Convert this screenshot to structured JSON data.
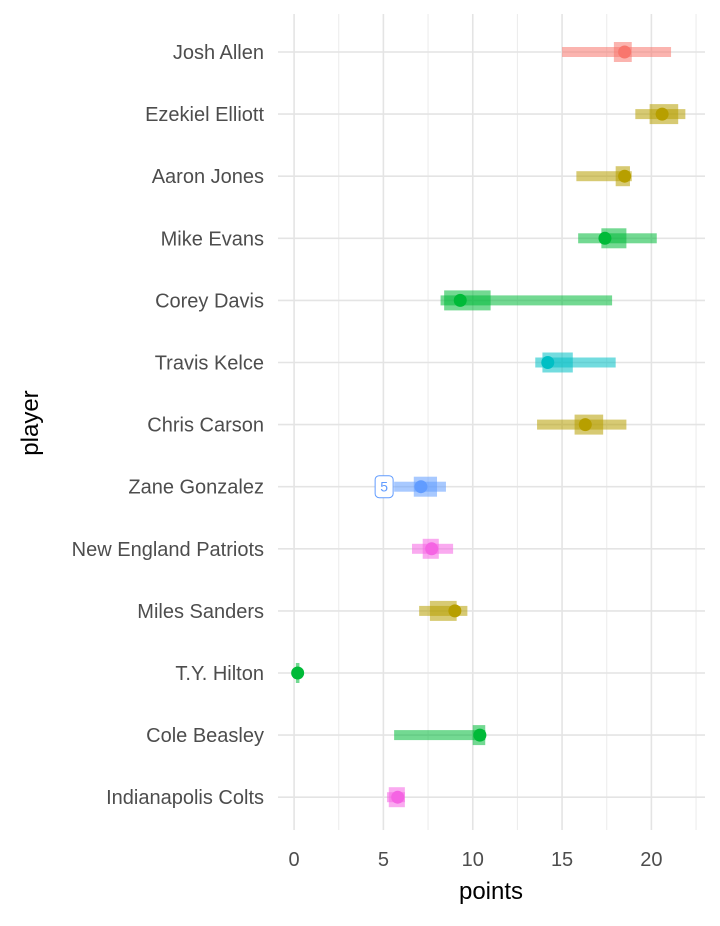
{
  "chart_data": {
    "type": "range-dot",
    "xlabel": "points",
    "ylabel": "player",
    "xlim": [
      -0.9,
      23.0
    ],
    "x_ticks": [
      0,
      5,
      10,
      15,
      20
    ],
    "grid": true,
    "legend": "none",
    "players": [
      {
        "name": "Josh Allen",
        "color": "#F8766D",
        "low": 15.0,
        "q1": 17.9,
        "q3": 18.9,
        "high": 21.1,
        "point": 18.5
      },
      {
        "name": "Ezekiel Elliott",
        "color": "#B79F00",
        "low": 19.1,
        "q1": 19.9,
        "q3": 21.5,
        "high": 21.9,
        "point": 20.6
      },
      {
        "name": "Aaron Jones",
        "color": "#B79F00",
        "low": 15.8,
        "q1": 18.0,
        "q3": 18.8,
        "high": 18.9,
        "point": 18.5
      },
      {
        "name": "Mike Evans",
        "color": "#00BA38",
        "low": 15.9,
        "q1": 17.2,
        "q3": 18.6,
        "high": 20.3,
        "point": 17.4
      },
      {
        "name": "Corey Davis",
        "color": "#00BA38",
        "low": 8.2,
        "q1": 8.4,
        "q3": 11.0,
        "high": 17.8,
        "point": 9.3
      },
      {
        "name": "Travis Kelce",
        "color": "#00BFC4",
        "low": 13.5,
        "q1": 13.9,
        "q3": 15.6,
        "high": 18.0,
        "point": 14.2
      },
      {
        "name": "Chris Carson",
        "color": "#B79F00",
        "low": 13.6,
        "q1": 15.7,
        "q3": 17.3,
        "high": 18.6,
        "point": 16.3
      },
      {
        "name": "Zane Gonzalez",
        "color": "#619CFF",
        "low": 5.6,
        "q1": 6.7,
        "q3": 8.0,
        "high": 8.5,
        "point": 7.1,
        "label": "5"
      },
      {
        "name": "New England Patriots",
        "color": "#F564E3",
        "low": 6.6,
        "q1": 7.2,
        "q3": 8.1,
        "high": 8.9,
        "point": 7.7
      },
      {
        "name": "Miles Sanders",
        "color": "#B79F00",
        "low": 7.0,
        "q1": 7.6,
        "q3": 9.1,
        "high": 9.7,
        "point": 9.0
      },
      {
        "name": "T.Y. Hilton",
        "color": "#00BA38",
        "low": 0.1,
        "q1": 0.1,
        "q3": 0.3,
        "high": 0.3,
        "point": 0.2
      },
      {
        "name": "Cole Beasley",
        "color": "#00BA38",
        "low": 5.6,
        "q1": 10.0,
        "q3": 10.7,
        "high": 10.7,
        "point": 10.4
      },
      {
        "name": "Indianapolis Colts",
        "color": "#F564E3",
        "low": 5.2,
        "q1": 5.3,
        "q3": 6.2,
        "high": 6.2,
        "point": 5.8
      }
    ]
  }
}
